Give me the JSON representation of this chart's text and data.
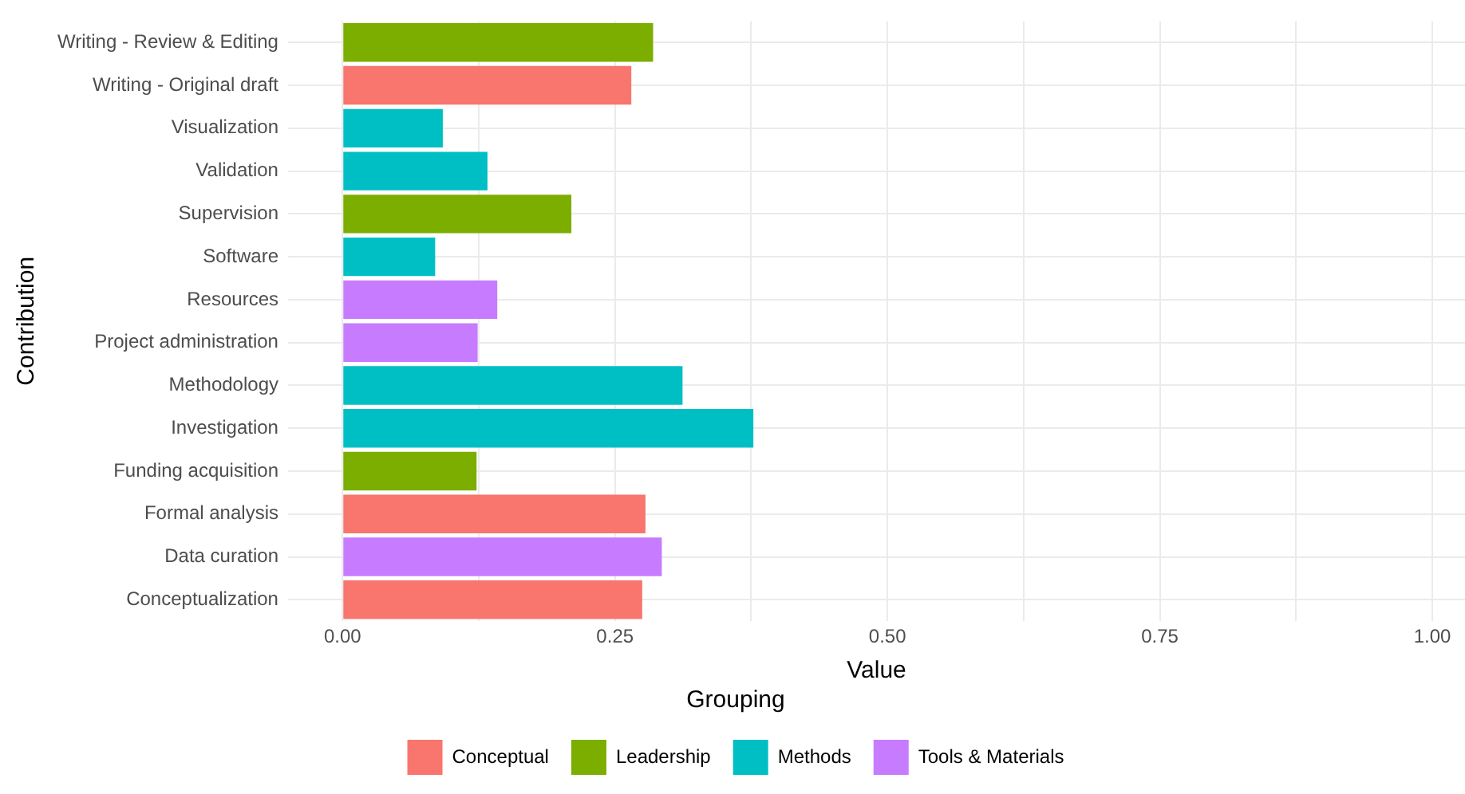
{
  "chart_data": {
    "type": "bar",
    "orientation": "horizontal",
    "xlabel": "Value",
    "ylabel": "Contribution",
    "legend_title": "Grouping",
    "legend": "bottom",
    "grid": true,
    "categories": [
      "Writing - Review & Editing",
      "Writing - Original draft",
      "Visualization",
      "Validation",
      "Supervision",
      "Software",
      "Resources",
      "Project administration",
      "Methodology",
      "Investigation",
      "Funding acquisition",
      "Formal analysis",
      "Data curation",
      "Conceptualization"
    ],
    "series": [
      {
        "name": "Conceptual",
        "color": "#f8766d",
        "values": [
          null,
          0.265,
          null,
          null,
          null,
          null,
          null,
          null,
          null,
          null,
          null,
          0.278,
          null,
          0.275
        ]
      },
      {
        "name": "Leadership",
        "color": "#7cae00",
        "values": [
          0.285,
          null,
          null,
          null,
          0.21,
          null,
          null,
          null,
          null,
          null,
          0.123,
          null,
          null,
          null
        ]
      },
      {
        "name": "Methods",
        "color": "#00bfc4",
        "values": [
          null,
          null,
          0.092,
          0.133,
          null,
          0.085,
          null,
          null,
          0.312,
          0.377,
          null,
          null,
          null,
          null
        ]
      },
      {
        "name": "Tools & Materials",
        "color": "#c77cff",
        "values": [
          null,
          null,
          null,
          null,
          null,
          null,
          0.142,
          0.124,
          null,
          null,
          null,
          null,
          0.293,
          null
        ]
      }
    ],
    "xlim": [
      -0.05,
      1.03
    ],
    "xticks": [
      {
        "value": 0,
        "label": "0.00"
      },
      {
        "value": 0.125,
        "label": null
      },
      {
        "value": 0.25,
        "label": "0.25"
      },
      {
        "value": 0.375,
        "label": null
      },
      {
        "value": 0.5,
        "label": "0.50"
      },
      {
        "value": 0.625,
        "label": null
      },
      {
        "value": 0.75,
        "label": "0.75"
      },
      {
        "value": 0.875,
        "label": null
      },
      {
        "value": 1,
        "label": "1.00"
      }
    ]
  }
}
